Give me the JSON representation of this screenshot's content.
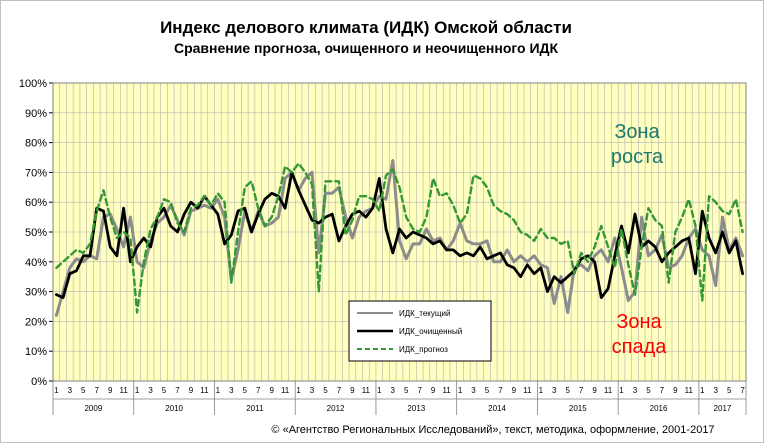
{
  "chart_data": {
    "type": "line",
    "title": "Индекс делового климата (ИДК) Омской области",
    "subtitle": "Сравнение прогноза, очищенного и неочищенного ИДК",
    "ylim": [
      0,
      100
    ],
    "y_ticks": [
      "0%",
      "10%",
      "20%",
      "30%",
      "40%",
      "50%",
      "60%",
      "70%",
      "80%",
      "90%",
      "100%"
    ],
    "x_month_ticks": [
      "1",
      "3",
      "5",
      "7",
      "9",
      "11"
    ],
    "x_month_ticks_last_year": [
      "1",
      "3",
      "5",
      "7"
    ],
    "years": [
      "2009",
      "2010",
      "2011",
      "2012",
      "2013",
      "2014",
      "2015",
      "2016",
      "2017"
    ],
    "months_total": 103,
    "grid": true,
    "legend_position": "bottom-center",
    "plot_background": "#ffffc0",
    "annotations": [
      {
        "lines": [
          "Зона",
          "роста"
        ],
        "color": "#1a7a70",
        "position": "top-right"
      },
      {
        "lines": [
          "Зона",
          "спада"
        ],
        "color": "#ff0000",
        "position": "bottom-right"
      }
    ],
    "series": [
      {
        "name": "ИДК_текущий",
        "color": "#8c8c8c",
        "style": "solid",
        "values": [
          22,
          30,
          38,
          41,
          40,
          42,
          41,
          55,
          56,
          51,
          45,
          55,
          40,
          38,
          47,
          53,
          55,
          59,
          54,
          49,
          57,
          58,
          59,
          58,
          61,
          55,
          34,
          44,
          57,
          50,
          57,
          52,
          53,
          55,
          68,
          70,
          64,
          68,
          70,
          43,
          63,
          63,
          65,
          55,
          48,
          55,
          57,
          58,
          62,
          61,
          74,
          47,
          41,
          46,
          46,
          51,
          47,
          48,
          44,
          47,
          53,
          47,
          46,
          46,
          47,
          40,
          40,
          44,
          40,
          42,
          40,
          42,
          39,
          38,
          26,
          35,
          23,
          38,
          39,
          37,
          42,
          44,
          40,
          48,
          38,
          27,
          30,
          55,
          42,
          44,
          49,
          38,
          39,
          42,
          48,
          51,
          44,
          42,
          32,
          55,
          44,
          48,
          42
        ]
      },
      {
        "name": "ИДК_очищенный",
        "color": "#000000",
        "style": "solid",
        "values": [
          29,
          28,
          36,
          37,
          42,
          42,
          58,
          57,
          45,
          42,
          58,
          40,
          45,
          48,
          45,
          55,
          58,
          52,
          50,
          56,
          60,
          58,
          62,
          59,
          56,
          46,
          49,
          57,
          58,
          50,
          56,
          61,
          63,
          62,
          58,
          70,
          64,
          59,
          54,
          53,
          55,
          56,
          47,
          52,
          56,
          57,
          55,
          58,
          68,
          51,
          43,
          51,
          48,
          50,
          49,
          48,
          46,
          47,
          44,
          44,
          42,
          43,
          42,
          45,
          41,
          42,
          43,
          39,
          38,
          35,
          39,
          36,
          38,
          30,
          35,
          33,
          35,
          37,
          41,
          42,
          40,
          28,
          31,
          42,
          52,
          43,
          56,
          45,
          47,
          45,
          40,
          43,
          45,
          47,
          48,
          36,
          57,
          48,
          43,
          50,
          43,
          47,
          36
        ]
      },
      {
        "name": "ИДК_прогноз",
        "color": "#339933",
        "style": "dashed",
        "values": [
          38,
          40,
          42,
          44,
          43,
          46,
          57,
          64,
          55,
          48,
          50,
          48,
          23,
          40,
          51,
          55,
          61,
          60,
          53,
          50,
          58,
          59,
          62,
          59,
          63,
          60,
          33,
          50,
          65,
          67,
          58,
          52,
          55,
          62,
          72,
          70,
          73,
          70,
          66,
          30,
          67,
          67,
          67,
          49,
          54,
          62,
          62,
          61,
          57,
          69,
          71,
          65,
          55,
          51,
          50,
          55,
          68,
          62,
          63,
          59,
          53,
          56,
          69,
          68,
          65,
          59,
          57,
          56,
          54,
          50,
          49,
          47,
          51,
          48,
          48,
          46,
          47,
          36,
          43,
          40,
          45,
          52,
          45,
          38,
          51,
          39,
          29,
          45,
          58,
          54,
          52,
          33,
          50,
          55,
          61,
          52,
          27,
          62,
          60,
          57,
          56,
          61,
          50
        ]
      }
    ]
  },
  "copyright": "© «Агентство Региональных Исследований», текст, методика, оформление, 2001-2017"
}
